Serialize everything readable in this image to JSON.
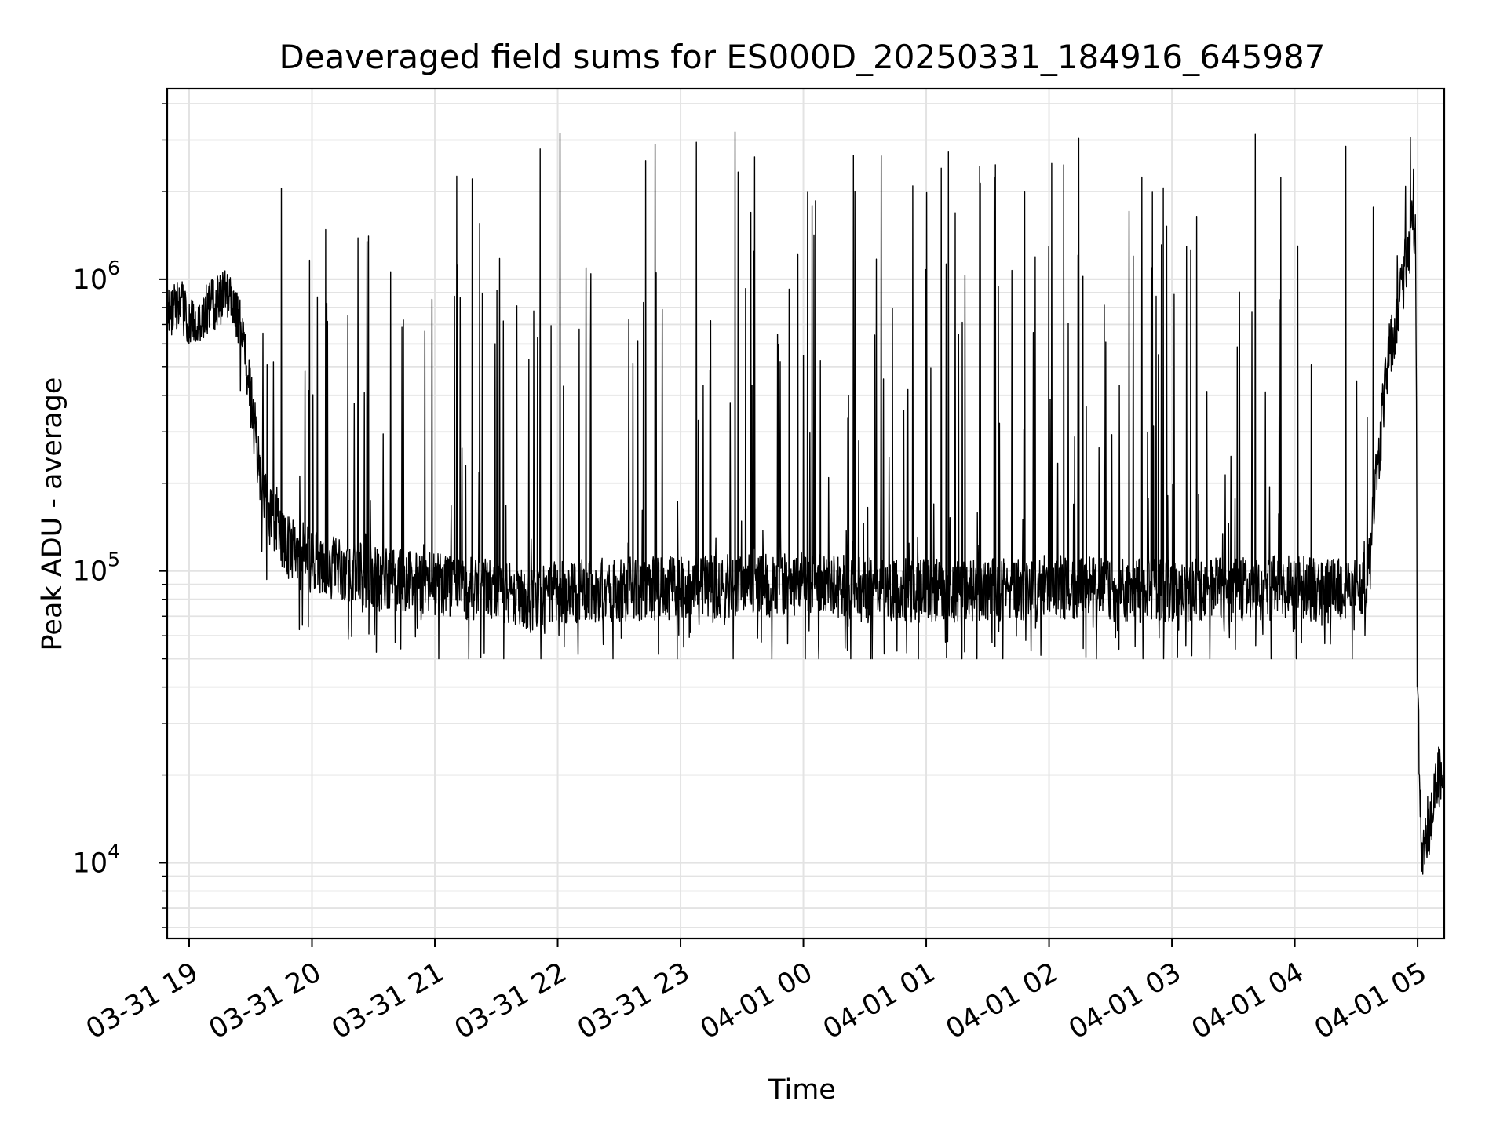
{
  "chart_data": {
    "type": "line",
    "title": "Deaveraged field sums for ES000D_20250331_184916_645987",
    "xlabel": "Time",
    "ylabel": "Peak ADU - average",
    "y_scale": "log",
    "ylim": [
      5500,
      4500000
    ],
    "xlim": [
      "2025-03-31 18:49:16",
      "2025-04-01 05:13:00"
    ],
    "grid": true,
    "line_color": "#000000",
    "grid_color": "#e3e3e3",
    "x_ticks": [
      {
        "at": "2025-03-31 19:00",
        "label": "03-31 19"
      },
      {
        "at": "2025-03-31 20:00",
        "label": "03-31 20"
      },
      {
        "at": "2025-03-31 21:00",
        "label": "03-31 21"
      },
      {
        "at": "2025-03-31 22:00",
        "label": "03-31 22"
      },
      {
        "at": "2025-03-31 23:00",
        "label": "03-31 23"
      },
      {
        "at": "2025-04-01 00:00",
        "label": "04-01 00"
      },
      {
        "at": "2025-04-01 01:00",
        "label": "04-01 01"
      },
      {
        "at": "2025-04-01 02:00",
        "label": "04-01 02"
      },
      {
        "at": "2025-04-01 03:00",
        "label": "04-01 03"
      },
      {
        "at": "2025-04-01 04:00",
        "label": "04-01 04"
      },
      {
        "at": "2025-04-01 05:00",
        "label": "04-01 05"
      }
    ],
    "y_ticks": [
      {
        "value": 10000,
        "base": "10",
        "exp": "4"
      },
      {
        "value": 100000,
        "base": "10",
        "exp": "5"
      },
      {
        "value": 1000000,
        "base": "10",
        "exp": "6"
      }
    ],
    "series": [
      {
        "x": [
          "2025-03-31 18:49:16",
          "2025-03-31 18:55",
          "2025-03-31 19:00",
          "2025-03-31 19:10",
          "2025-03-31 19:20",
          "2025-03-31 19:25",
          "2025-03-31 19:30",
          "2025-03-31 19:35",
          "2025-03-31 19:40",
          "2025-03-31 19:50",
          "2025-03-31 20:00",
          "2025-03-31 20:15",
          "2025-03-31 20:30",
          "2025-03-31 21:00",
          "2025-03-31 21:30",
          "2025-03-31 21:50",
          "2025-03-31 22:00",
          "2025-03-31 23:00",
          "2025-04-01 00:00",
          "2025-04-01 01:00",
          "2025-04-01 02:00",
          "2025-04-01 03:00",
          "2025-04-01 04:00",
          "2025-04-01 04:20",
          "2025-04-01 04:35",
          "2025-04-01 04:45",
          "2025-04-01 04:55",
          "2025-04-01 04:59",
          "2025-04-01 05:00",
          "2025-04-01 05:02",
          "2025-04-01 05:06",
          "2025-04-01 05:10",
          "2025-04-01 05:13"
        ],
        "values": [
          750000,
          850000,
          700000,
          800000,
          900000,
          700000,
          400000,
          200000,
          150000,
          120000,
          110000,
          100000,
          95000,
          90000,
          85000,
          80000,
          85000,
          88000,
          90000,
          85000,
          88000,
          85000,
          88000,
          85000,
          90000,
          500000,
          1200000,
          1500000,
          40000,
          11000,
          14000,
          20000,
          18000
        ],
        "spike_peak_typical": 2200000,
        "spike_peak_max": 3200000,
        "noise_floor_min": 50000
      }
    ]
  }
}
